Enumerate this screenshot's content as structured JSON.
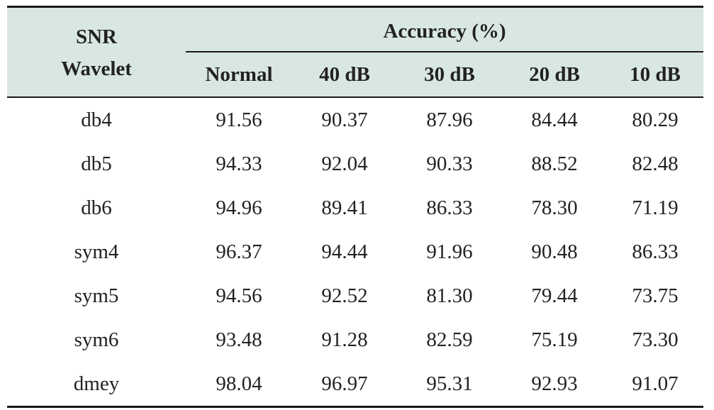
{
  "table": {
    "stub_header_line1": "SNR",
    "stub_header_line2": "Wavelet",
    "group_header": "Accuracy (%)",
    "columns": [
      "Normal",
      "40 dB",
      "30 dB",
      "20 dB",
      "10 dB"
    ],
    "rows": [
      {
        "label": "db4",
        "values": [
          "91.56",
          "90.37",
          "87.96",
          "84.44",
          "80.29"
        ]
      },
      {
        "label": "db5",
        "values": [
          "94.33",
          "92.04",
          "90.33",
          "88.52",
          "82.48"
        ]
      },
      {
        "label": "db6",
        "values": [
          "94.96",
          "89.41",
          "86.33",
          "78.30",
          "71.19"
        ]
      },
      {
        "label": "sym4",
        "values": [
          "96.37",
          "94.44",
          "91.96",
          "90.48",
          "86.33"
        ]
      },
      {
        "label": "sym5",
        "values": [
          "94.56",
          "92.52",
          "81.30",
          "79.44",
          "73.75"
        ]
      },
      {
        "label": "sym6",
        "values": [
          "93.48",
          "91.28",
          "82.59",
          "75.19",
          "73.30"
        ]
      },
      {
        "label": "dmey",
        "values": [
          "98.04",
          "96.97",
          "95.31",
          "92.93",
          "91.07"
        ]
      }
    ]
  },
  "colors": {
    "header_background": "#d9e7e4",
    "rule": "#1a1a1a",
    "text": "#222222"
  }
}
